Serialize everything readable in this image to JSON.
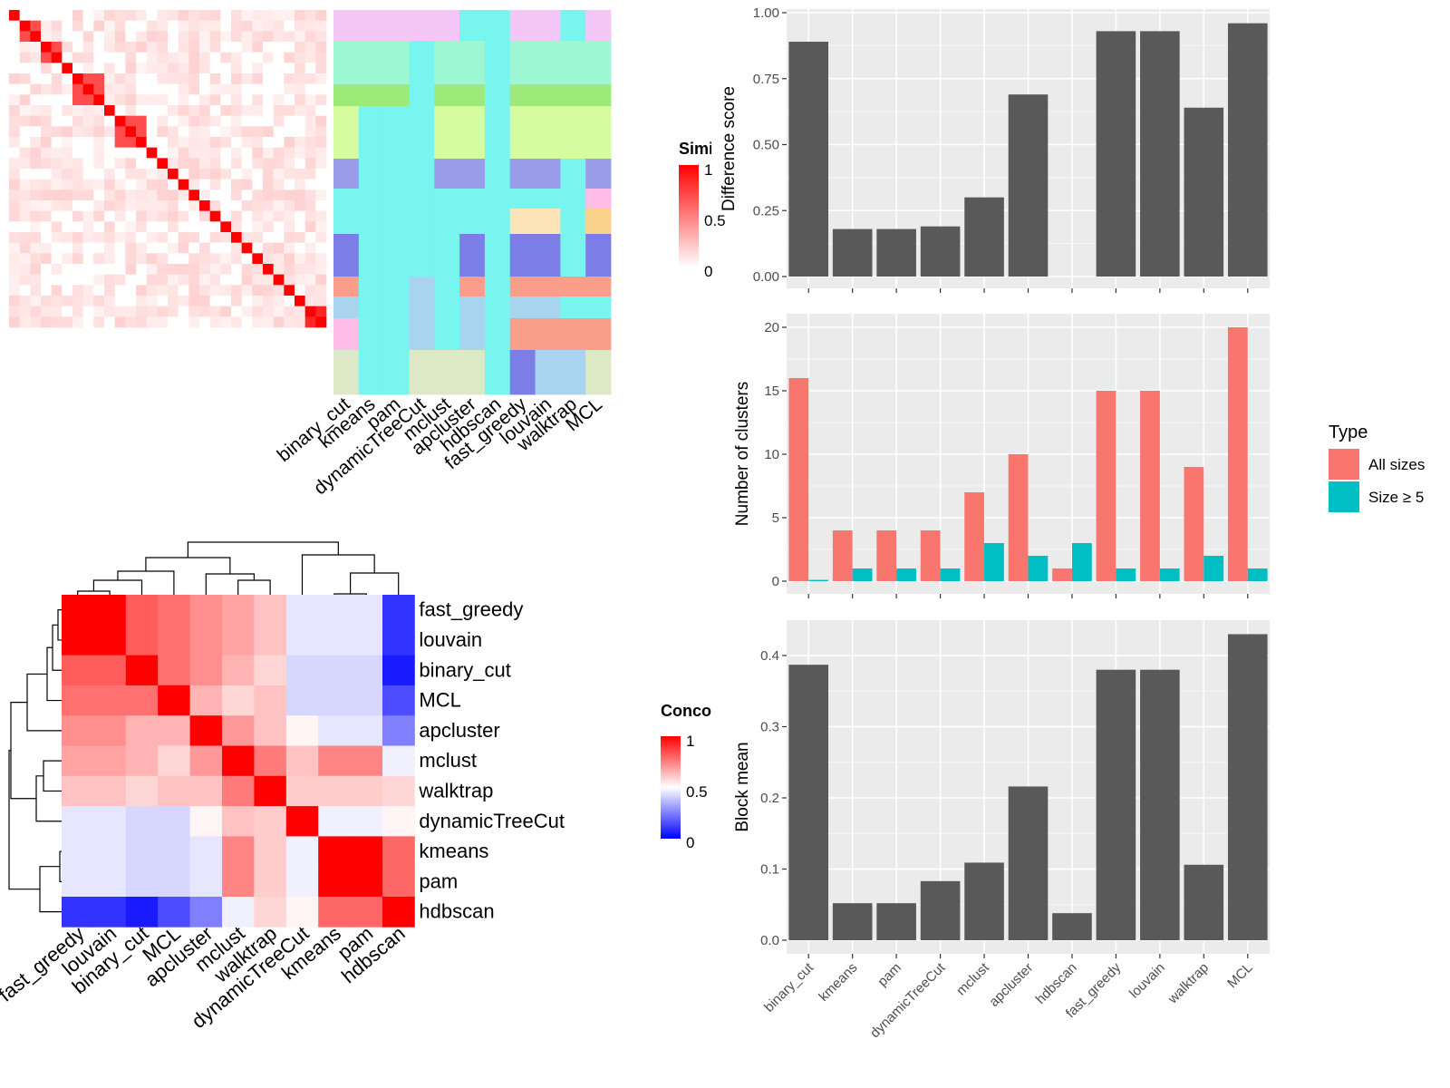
{
  "methods": [
    "binary_cut",
    "kmeans",
    "pam",
    "dynamicTreeCut",
    "mclust",
    "apcluster",
    "hdbscan",
    "fast_greedy",
    "louvain",
    "walktrap",
    "MCL"
  ],
  "similarity_legend": {
    "title": "Similarity",
    "ticks": [
      "1",
      "0.5",
      "0"
    ],
    "colors": {
      "low": "#ffffff",
      "high": "#ff0000"
    }
  },
  "concordance_legend": {
    "title": "Concordance",
    "ticks": [
      "1",
      "0.5",
      "0"
    ],
    "colors": {
      "low": "#0000ff",
      "mid": "#ffffff",
      "high": "#ff0000"
    }
  },
  "cluster_palette": [
    "#f5c7f7",
    "#9ef7d3",
    "#9eea78",
    "#d6fca0",
    "#fce3b8",
    "#9a9cea",
    "#7c7de6",
    "#fa9e8a",
    "#a8d4f0",
    "#fcbce7",
    "#fbd28c",
    "#dde8c7"
  ],
  "concordance": {
    "order": [
      "fast_greedy",
      "louvain",
      "binary_cut",
      "MCL",
      "apcluster",
      "mclust",
      "walktrap",
      "dynamicTreeCut",
      "kmeans",
      "pam",
      "hdbscan"
    ],
    "matrix": [
      [
        1.0,
        1.0,
        0.82,
        0.78,
        0.72,
        0.68,
        0.62,
        0.45,
        0.45,
        0.45,
        0.1
      ],
      [
        1.0,
        1.0,
        0.82,
        0.78,
        0.72,
        0.68,
        0.62,
        0.45,
        0.45,
        0.45,
        0.1
      ],
      [
        0.82,
        0.82,
        1.0,
        0.78,
        0.72,
        0.65,
        0.58,
        0.42,
        0.42,
        0.42,
        0.05
      ],
      [
        0.78,
        0.78,
        0.78,
        1.0,
        0.65,
        0.58,
        0.62,
        0.42,
        0.42,
        0.42,
        0.15
      ],
      [
        0.72,
        0.72,
        0.65,
        0.65,
        1.0,
        0.7,
        0.62,
        0.52,
        0.45,
        0.45,
        0.25
      ],
      [
        0.68,
        0.68,
        0.65,
        0.58,
        0.7,
        1.0,
        0.76,
        0.62,
        0.74,
        0.74,
        0.47
      ],
      [
        0.62,
        0.62,
        0.58,
        0.62,
        0.62,
        0.76,
        1.0,
        0.6,
        0.6,
        0.6,
        0.58
      ],
      [
        0.45,
        0.45,
        0.42,
        0.42,
        0.52,
        0.62,
        0.6,
        1.0,
        0.47,
        0.47,
        0.52
      ],
      [
        0.45,
        0.45,
        0.42,
        0.42,
        0.45,
        0.74,
        0.6,
        0.47,
        1.0,
        1.0,
        0.8
      ],
      [
        0.45,
        0.45,
        0.42,
        0.42,
        0.45,
        0.74,
        0.6,
        0.47,
        1.0,
        1.0,
        0.8
      ],
      [
        0.1,
        0.1,
        0.05,
        0.15,
        0.25,
        0.47,
        0.58,
        0.52,
        0.8,
        0.8,
        1.0
      ]
    ]
  },
  "chart_data": [
    {
      "type": "bar",
      "categories": [
        "binary_cut",
        "kmeans",
        "pam",
        "dynamicTreeCut",
        "mclust",
        "apcluster",
        "hdbscan",
        "fast_greedy",
        "louvain",
        "walktrap",
        "MCL"
      ],
      "values": [
        0.89,
        0.18,
        0.18,
        0.19,
        0.3,
        0.69,
        null,
        0.93,
        0.93,
        0.64,
        0.96
      ],
      "ylabel": "Difference score",
      "ylim": [
        0,
        1
      ],
      "yticks": [
        "0.00",
        "0.25",
        "0.50",
        "0.75",
        "1.00"
      ],
      "color": "#595959"
    },
    {
      "type": "bar",
      "categories": [
        "binary_cut",
        "kmeans",
        "pam",
        "dynamicTreeCut",
        "mclust",
        "apcluster",
        "hdbscan",
        "fast_greedy",
        "louvain",
        "walktrap",
        "MCL"
      ],
      "series": [
        {
          "name": "All sizes",
          "values": [
            16,
            4,
            4,
            4,
            7,
            10,
            1,
            15,
            15,
            9,
            20
          ],
          "color": "#f8766d"
        },
        {
          "name": "Size ≥ 5",
          "values": [
            0.1,
            1,
            1,
            1,
            3,
            2,
            3,
            1,
            1,
            2,
            1
          ],
          "color": "#00bfc4"
        }
      ],
      "ylabel": "Number of clusters",
      "ylim": [
        0,
        21
      ],
      "yticks": [
        "0",
        "5",
        "10",
        "15",
        "20"
      ],
      "legend": {
        "title": "Type",
        "position": "right"
      }
    },
    {
      "type": "bar",
      "categories": [
        "binary_cut",
        "kmeans",
        "pam",
        "dynamicTreeCut",
        "mclust",
        "apcluster",
        "hdbscan",
        "fast_greedy",
        "louvain",
        "walktrap",
        "MCL"
      ],
      "values": [
        0.387,
        0.052,
        0.052,
        0.083,
        0.109,
        0.216,
        0.038,
        0.38,
        0.38,
        0.106,
        0.43
      ],
      "ylabel": "Block mean",
      "ylim": [
        0,
        0.44
      ],
      "yticks": [
        "0.0",
        "0.1",
        "0.2",
        "0.3",
        "0.4"
      ],
      "color": "#595959"
    }
  ]
}
